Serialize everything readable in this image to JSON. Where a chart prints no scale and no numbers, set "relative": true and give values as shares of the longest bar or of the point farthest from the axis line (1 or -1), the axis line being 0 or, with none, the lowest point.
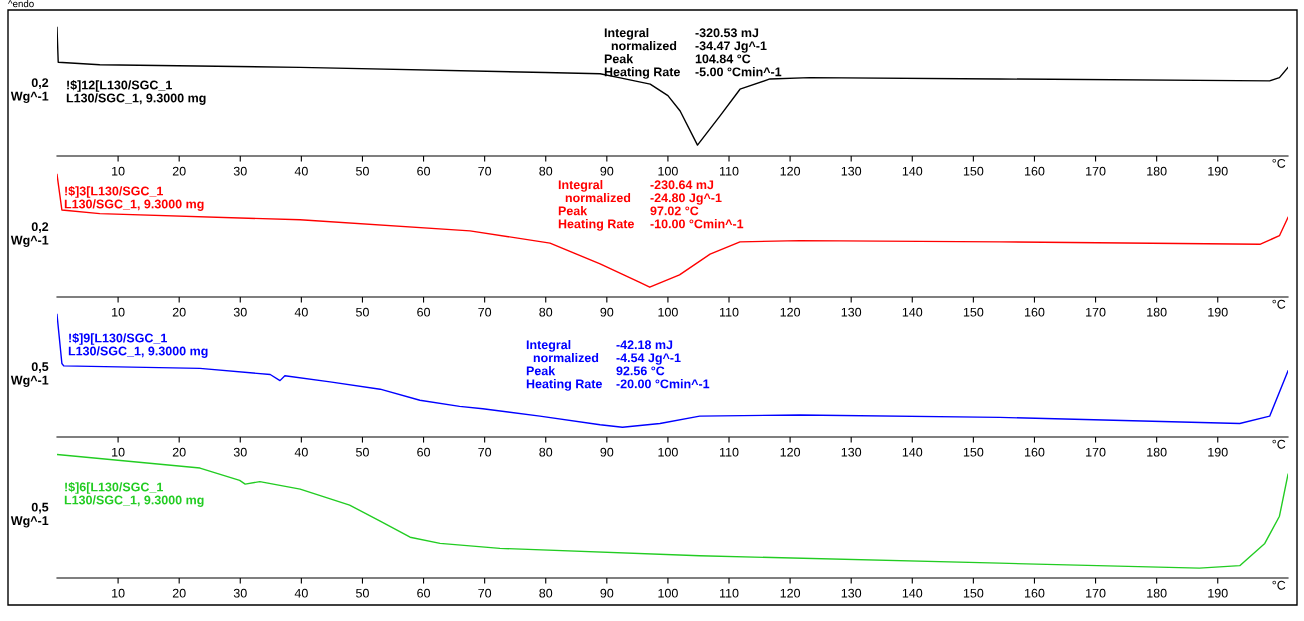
{
  "chart_data": [
    {
      "type": "line",
      "relative": true,
      "xlim": [
        0,
        201.5
      ],
      "xticks": [
        10,
        20,
        30,
        40,
        50,
        60,
        70,
        80,
        90,
        100,
        110,
        120,
        130,
        140,
        150,
        160,
        170,
        180,
        190
      ],
      "xlabel": "°C",
      "ylabel": "0,2\nWg^-1",
      "grid": false,
      "legend": false,
      "marker": "none",
      "line_style": "solid",
      "annotations": [
        "^endo",
        "!$]12[L130/SGC_1\nL130/SGC_1, 9.3000 mg",
        "Integral\n  normalized\nPeak\nHeating Rate",
        "-320.53 mJ\n-34.47 Jg^-1\n104.84 °C\n-5.00 °Cmin^-1"
      ],
      "series": [
        {
          "color": "#000000",
          "x": [
            0,
            0.2,
            7.0,
            39.8,
            79.9,
            88.9,
            92,
            97.1,
            100,
            102.0,
            104.84,
            108.5,
            111.8,
            116.7,
            123.2,
            154.3,
            198.5,
            200.1,
            201.5
          ],
          "values": [
            1.0,
            0.73,
            0.71,
            0.69,
            0.65,
            0.64,
            0.61,
            0.56,
            0.47,
            0.35,
            0.085,
            0.31,
            0.52,
            0.6,
            0.61,
            0.6,
            0.585,
            0.61,
            0.69
          ]
        }
      ]
    },
    {
      "type": "line",
      "relative": true,
      "xlim": [
        0,
        201.5
      ],
      "xticks": [
        10,
        20,
        30,
        40,
        50,
        60,
        70,
        80,
        90,
        100,
        110,
        120,
        130,
        140,
        150,
        160,
        170,
        180,
        190
      ],
      "xlabel": "°C",
      "ylabel": "0,2\nWg^-1",
      "grid": false,
      "legend": false,
      "marker": "none",
      "line_style": "solid",
      "annotations": [
        "!$]3[L130/SGC_1\nL130/SGC_1, 9.3000 mg",
        "Integral\n  normalized\nPeak\nHeating Rate",
        "-230.64 mJ\n-24.80 Jg^-1\n97.02 °C\n-10.00 °Cmin^-1"
      ],
      "series": [
        {
          "color": "#ff0000",
          "x": [
            0,
            0.8,
            7.0,
            39.8,
            67.6,
            80.7,
            88.9,
            95.4,
            97.02,
            101.9,
            106.9,
            111.8,
            121.6,
            154.3,
            196.9,
            200.1,
            201.5
          ],
          "values": [
            1.0,
            0.71,
            0.68,
            0.63,
            0.54,
            0.44,
            0.27,
            0.12,
            0.08,
            0.18,
            0.35,
            0.45,
            0.46,
            0.45,
            0.43,
            0.5,
            0.65
          ]
        }
      ]
    },
    {
      "type": "line",
      "relative": true,
      "xlim": [
        0,
        201.5
      ],
      "xticks": [
        10,
        20,
        30,
        40,
        50,
        60,
        70,
        80,
        90,
        100,
        110,
        120,
        130,
        140,
        150,
        160,
        170,
        180,
        190
      ],
      "xlabel": "°C",
      "ylabel": "0,5\nWg^-1",
      "grid": false,
      "legend": false,
      "marker": "none",
      "line_style": "solid",
      "annotations": [
        "!$]9[L130/SGC_1\nL130/SGC_1, 9.3000 mg",
        "Integral\n  normalized\nPeak\nHeating Rate",
        "-42.18 mJ\n-4.54 Jg^-1\n92.56 °C\n-20.00 °Cmin^-1"
      ],
      "series": [
        {
          "color": "#0000ff",
          "x": [
            0,
            0.8,
            1.1,
            23.4,
            34.9,
            36.5,
            37.3,
            44.7,
            52.9,
            59.4,
            65.9,
            69.7,
            79.05,
            88.9,
            92.56,
            98.7,
            105.2,
            121.6,
            154.3,
            193.6,
            198.5,
            201.5
          ],
          "values": [
            1.0,
            0.6,
            0.58,
            0.56,
            0.51,
            0.46,
            0.5,
            0.45,
            0.39,
            0.3,
            0.25,
            0.23,
            0.17,
            0.1,
            0.08,
            0.11,
            0.17,
            0.18,
            0.16,
            0.11,
            0.17,
            0.54
          ]
        }
      ]
    },
    {
      "type": "line",
      "relative": true,
      "xlim": [
        0,
        201.5
      ],
      "xticks": [
        10,
        20,
        30,
        40,
        50,
        60,
        70,
        80,
        90,
        100,
        110,
        120,
        130,
        140,
        150,
        160,
        170,
        180,
        190
      ],
      "xlabel": "°C",
      "ylabel": "0,5\nWg^-1",
      "grid": false,
      "legend": false,
      "marker": "none",
      "line_style": "solid",
      "annotations": [
        "!$]6[L130/SGC_1\nL130/SGC_1, 9.3000 mg"
      ],
      "series": [
        {
          "color": "#22cc22",
          "x": [
            0,
            23.4,
            29.9,
            30.8,
            33.2,
            39.8,
            47.9,
            52.9,
            57.8,
            62.7,
            72.5,
            105.2,
            154.3,
            187.0,
            193.6,
            197.7,
            200.1,
            201.5
          ],
          "values": [
            1.0,
            0.89,
            0.79,
            0.76,
            0.78,
            0.72,
            0.59,
            0.46,
            0.33,
            0.28,
            0.24,
            0.18,
            0.12,
            0.08,
            0.1,
            0.28,
            0.5,
            0.84
          ]
        }
      ]
    }
  ]
}
